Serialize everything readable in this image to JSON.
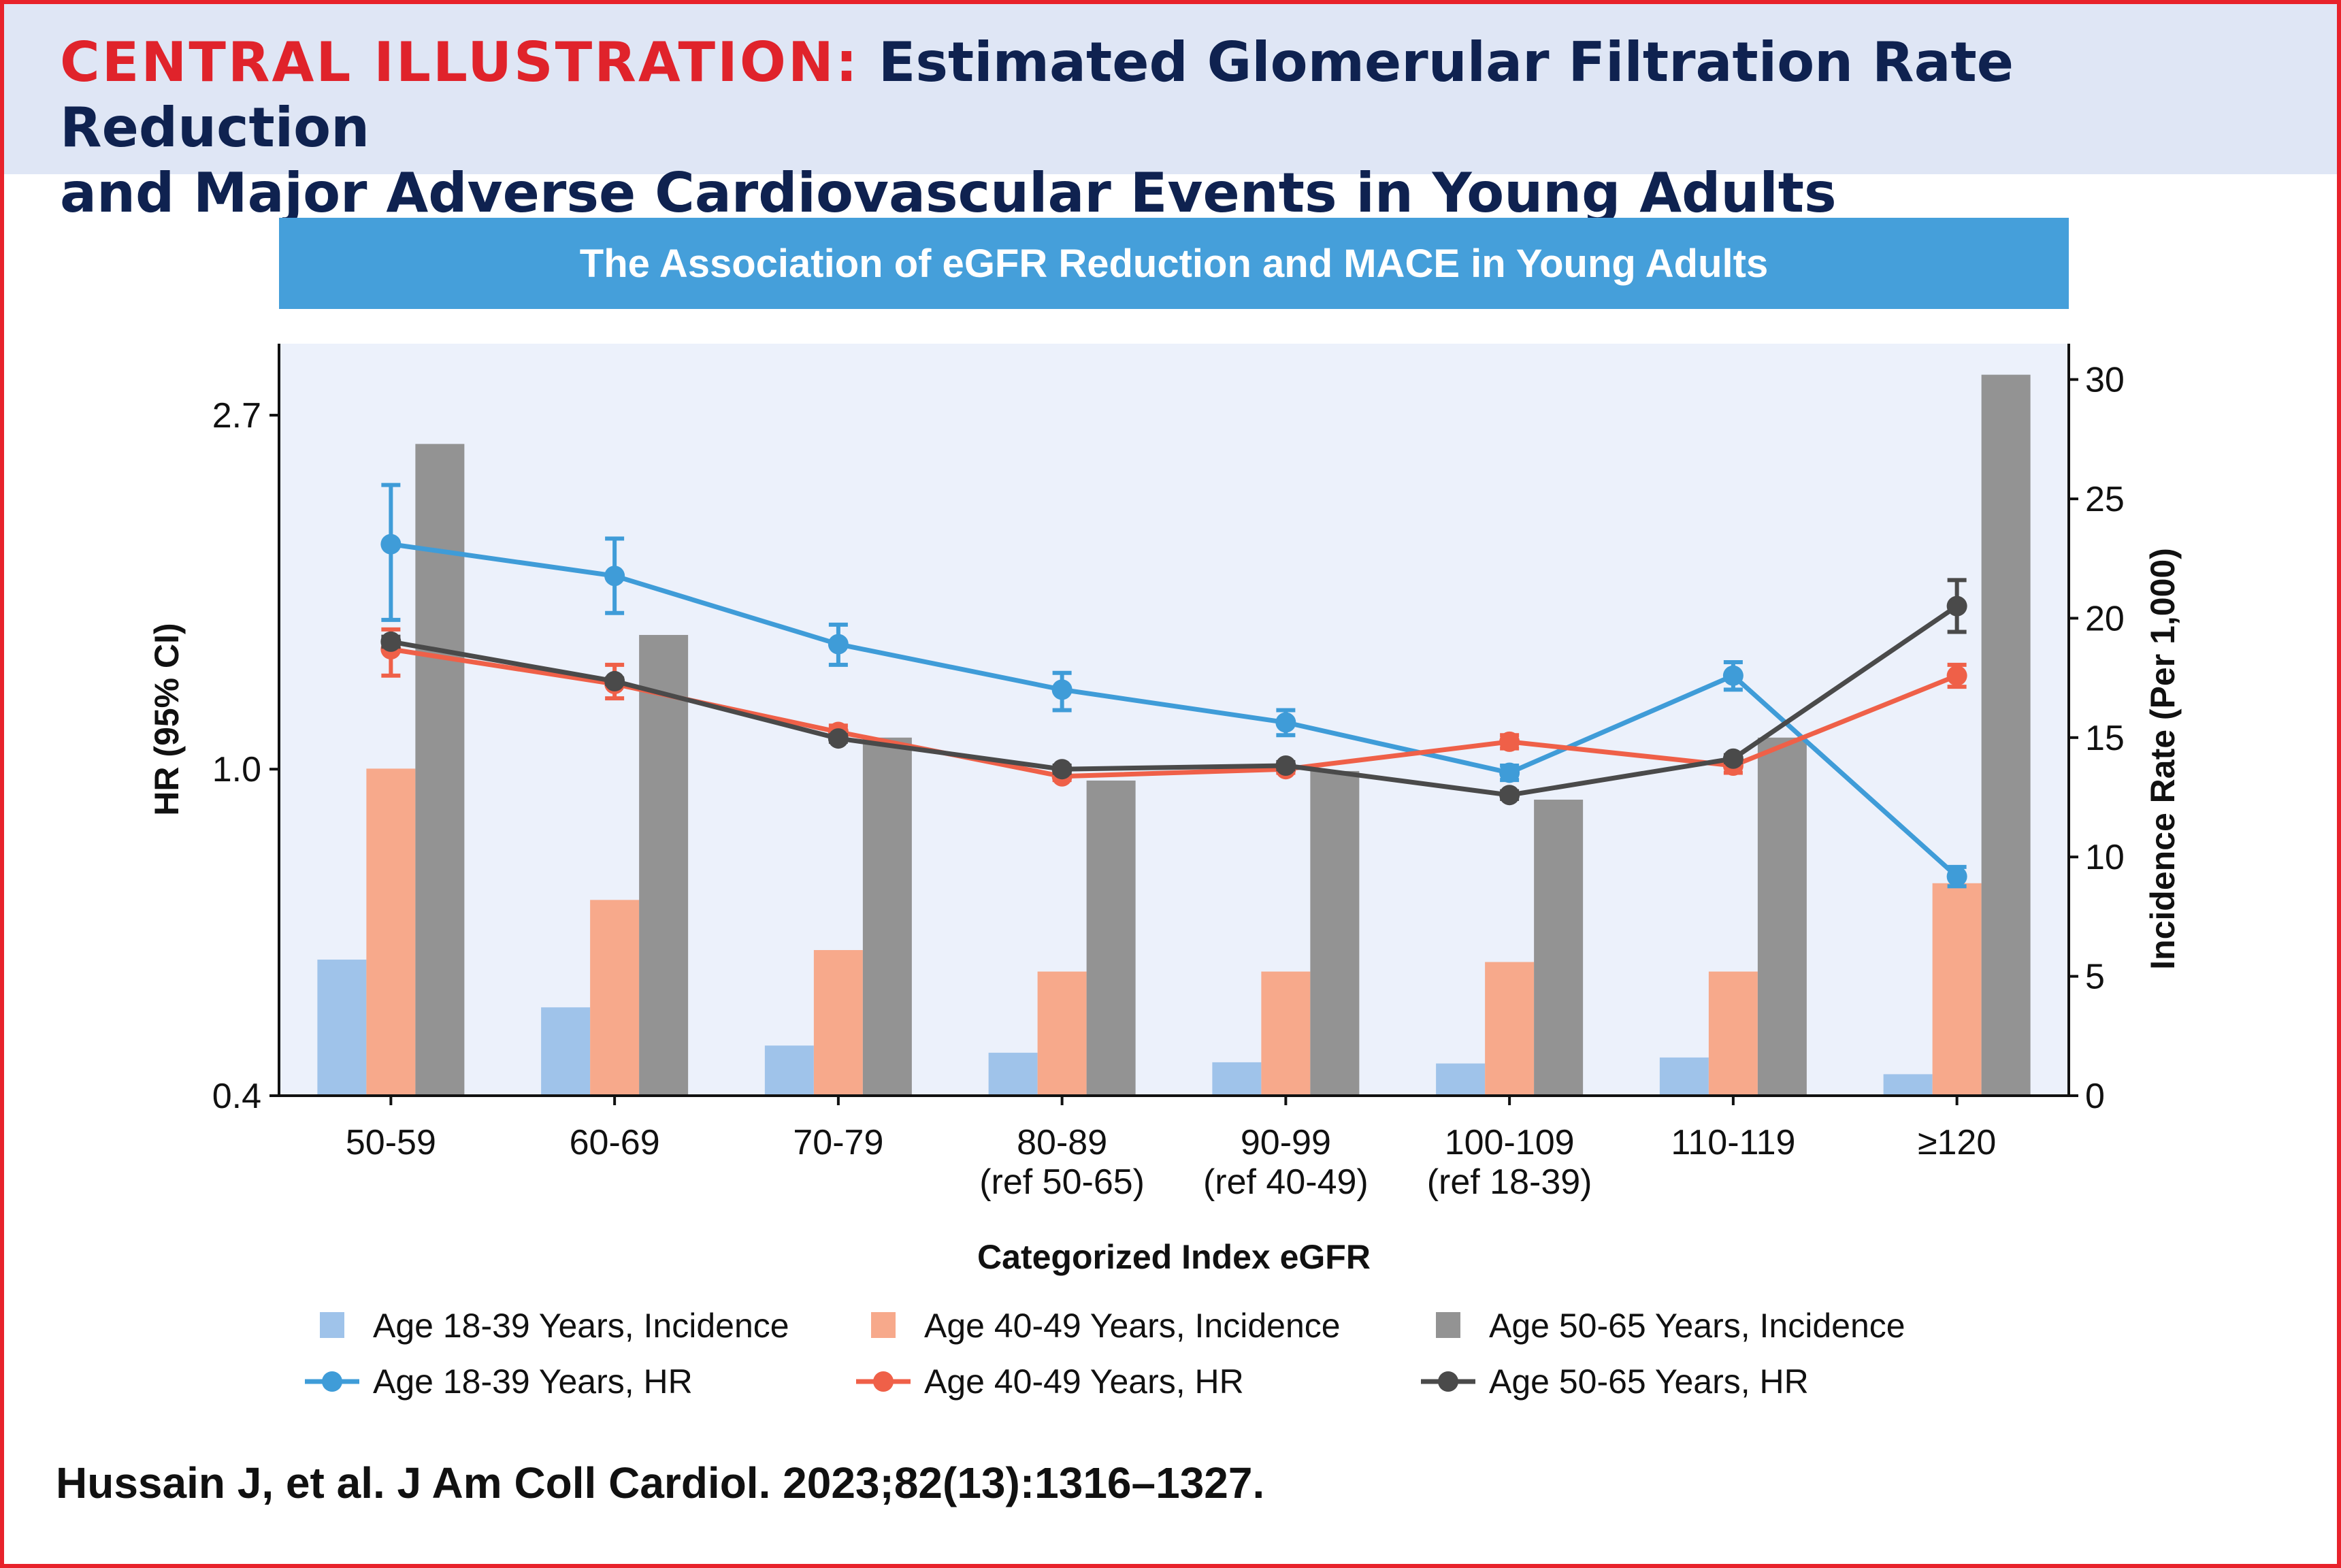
{
  "header": {
    "lead": "CENTRAL ILLUSTRATION:",
    "title_line1": " Estimated Glomerular Filtration Rate Reduction",
    "title_line2": "and Major Adverse Cardiovascular Events in Young Adults"
  },
  "banner": {
    "title": "The Association of eGFR Reduction and MACE in Young Adults"
  },
  "citation": "Hussain J, et al. J Am Coll Cardiol. 2023;82(13):1316–1327.",
  "colors": {
    "age18_bar": "#9fc3ea",
    "age40_bar": "#f7a98b",
    "age50_bar": "#939393",
    "age18_line": "#3f9cd8",
    "age40_line": "#ef6048",
    "age50_line": "#4a4a4a",
    "plot_bg": "#ecf1fb",
    "header_red": "#e0232b",
    "header_navy": "#0f2250",
    "banner": "#459fda"
  },
  "chart_data": {
    "type": "bar+line",
    "categories": [
      [
        "50-59"
      ],
      [
        "60-69"
      ],
      [
        "70-79"
      ],
      [
        "80-89",
        "(ref 50-65)"
      ],
      [
        "90-99",
        "(ref 40-49)"
      ],
      [
        "100-109",
        "(ref 18-39)"
      ],
      [
        "110-119"
      ],
      [
        "≥120"
      ]
    ],
    "xlabel": "Categorized Index eGFR",
    "ylabel_left": "HR (95% CI)",
    "ylabel_right": "Incidence Rate (Per 1,000)",
    "y_left": {
      "scale": "log",
      "range": [
        0.4,
        3.3
      ],
      "ticks": [
        0.4,
        1.0,
        2.7
      ],
      "tick_labels": [
        "0.4",
        "1.0",
        "2.7"
      ]
    },
    "y_right": {
      "scale": "linear",
      "range": [
        0,
        31.5
      ],
      "ticks": [
        0,
        5,
        10,
        15,
        20,
        25,
        30
      ],
      "tick_labels": [
        "0",
        "5",
        "10",
        "15",
        "20",
        "25",
        "30"
      ]
    },
    "bar_series": [
      {
        "name": "Age 18-39 Years, Incidence",
        "color_key": "age18_bar",
        "values": [
          5.7,
          3.7,
          2.1,
          1.8,
          1.4,
          1.35,
          1.6,
          0.9
        ]
      },
      {
        "name": "Age 40-49 Years, Incidence",
        "color_key": "age40_bar",
        "values": [
          13.7,
          8.2,
          6.1,
          5.2,
          5.2,
          5.6,
          5.2,
          8.9
        ]
      },
      {
        "name": "Age 50-65 Years, Incidence",
        "color_key": "age50_bar",
        "values": [
          27.3,
          19.3,
          15.0,
          13.2,
          13.6,
          12.4,
          15.0,
          30.2
        ]
      }
    ],
    "line_series": [
      {
        "name": "Age 18-39 Years, HR",
        "color_key": "age18_line",
        "values": [
          1.88,
          1.72,
          1.42,
          1.25,
          1.14,
          0.99,
          1.3,
          0.74
        ],
        "ci_low": [
          1.52,
          1.55,
          1.34,
          1.18,
          1.1,
          0.97,
          1.25,
          0.72
        ],
        "ci_high": [
          2.22,
          1.91,
          1.5,
          1.31,
          1.18,
          1.01,
          1.35,
          0.76
        ]
      },
      {
        "name": "Age 40-49 Years, HR",
        "color_key": "age40_line",
        "values": [
          1.4,
          1.27,
          1.11,
          0.98,
          1.0,
          1.08,
          1.01,
          1.3
        ],
        "ci_low": [
          1.3,
          1.22,
          1.09,
          0.97,
          0.99,
          1.06,
          0.99,
          1.26
        ],
        "ci_high": [
          1.48,
          1.34,
          1.13,
          0.99,
          1.01,
          1.1,
          1.03,
          1.34
        ]
      },
      {
        "name": "Age 50-65 Years, HR",
        "color_key": "age50_line",
        "values": [
          1.43,
          1.28,
          1.09,
          1.0,
          1.01,
          0.93,
          1.03,
          1.58
        ],
        "ci_low": [
          1.41,
          1.27,
          1.08,
          0.99,
          1.0,
          0.92,
          1.02,
          1.47
        ],
        "ci_high": [
          1.45,
          1.29,
          1.1,
          1.01,
          1.02,
          0.94,
          1.04,
          1.7
        ]
      }
    ],
    "legend_position": "bottom",
    "legend": [
      "Age 18-39 Years, Incidence",
      "Age 40-49 Years, Incidence",
      "Age 50-65 Years, Incidence",
      "Age 18-39 Years, HR",
      "Age 40-49 Years, HR",
      "Age 50-65 Years, HR"
    ]
  }
}
